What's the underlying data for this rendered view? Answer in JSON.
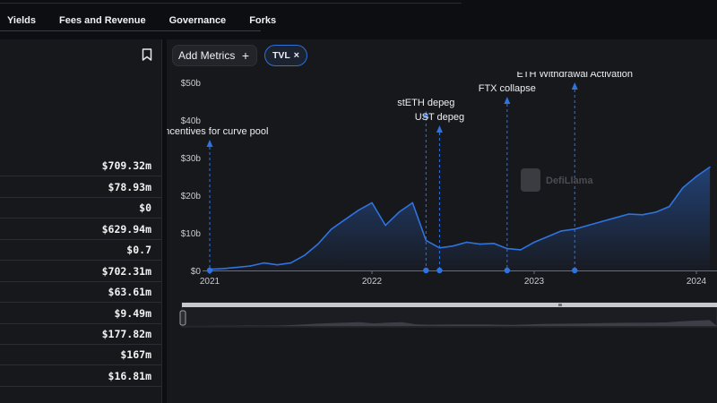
{
  "tabs": [
    "Yields",
    "Fees and Revenue",
    "Governance",
    "Forks"
  ],
  "left_values": [
    "$709.32m",
    "$78.93m",
    "$0",
    "$629.94m",
    "$0.7",
    "$702.31m",
    "$63.61m",
    "$9.49m",
    "$177.82m",
    "$167m",
    "$16.81m"
  ],
  "toolbar": {
    "add_metrics": "Add Metrics",
    "add_icon": "+",
    "chip_label": "TVL",
    "chip_close": "×"
  },
  "watermark": "DefiLlama",
  "colors": {
    "line": "#2f73e0",
    "background": "#17181c",
    "accent": "#2f6fd6"
  },
  "chart_data": {
    "type": "area",
    "series": [
      {
        "points": [
          [
            "2021-01",
            0.3
          ],
          [
            "2021-02",
            0.5
          ],
          [
            "2021-03",
            0.8
          ],
          [
            "2021-04",
            1.2
          ],
          [
            "2021-05",
            2.0
          ],
          [
            "2021-06",
            1.5
          ],
          [
            "2021-07",
            2.0
          ],
          [
            "2021-08",
            4.0
          ],
          [
            "2021-09",
            7.0
          ],
          [
            "2021-10",
            11.0
          ],
          [
            "2021-11",
            13.5
          ],
          [
            "2021-12",
            16.0
          ],
          [
            "2022-01",
            18.0
          ],
          [
            "2022-02",
            12.0
          ],
          [
            "2022-03",
            15.5
          ],
          [
            "2022-04",
            18.0
          ],
          [
            "2022-05",
            8.0
          ],
          [
            "2022-06",
            6.0
          ],
          [
            "2022-07",
            6.5
          ],
          [
            "2022-08",
            7.5
          ],
          [
            "2022-09",
            7.0
          ],
          [
            "2022-10",
            7.2
          ],
          [
            "2022-11",
            5.8
          ],
          [
            "2022-12",
            5.5
          ],
          [
            "2023-01",
            7.5
          ],
          [
            "2023-02",
            9.0
          ],
          [
            "2023-03",
            10.5
          ],
          [
            "2023-04",
            11.0
          ],
          [
            "2023-05",
            12.0
          ],
          [
            "2023-06",
            13.0
          ],
          [
            "2023-07",
            14.0
          ],
          [
            "2023-08",
            15.0
          ],
          [
            "2023-09",
            14.8
          ],
          [
            "2023-10",
            15.5
          ],
          [
            "2023-11",
            17.0
          ],
          [
            "2023-12",
            22.0
          ],
          [
            "2024-01",
            25.0
          ],
          [
            "2024-02",
            27.5
          ]
        ]
      }
    ],
    "yticks": [
      "$0",
      "$10b",
      "$20b",
      "$30b",
      "$40b",
      "$50b"
    ],
    "xticks": [
      "2021",
      "2022",
      "2023",
      "2024"
    ],
    "ylim": [
      0,
      50
    ],
    "annotations": [
      {
        "label": "of incentives for curve pool",
        "date": "2021-01"
      },
      {
        "label": "stETH depeg",
        "date": "2022-05"
      },
      {
        "label": "UST depeg",
        "date": "2022-06"
      },
      {
        "label": "FTX collapse",
        "date": "2022-11"
      },
      {
        "label": "ETH Withdrawal Activation",
        "date": "2023-04"
      }
    ],
    "grid": false
  }
}
